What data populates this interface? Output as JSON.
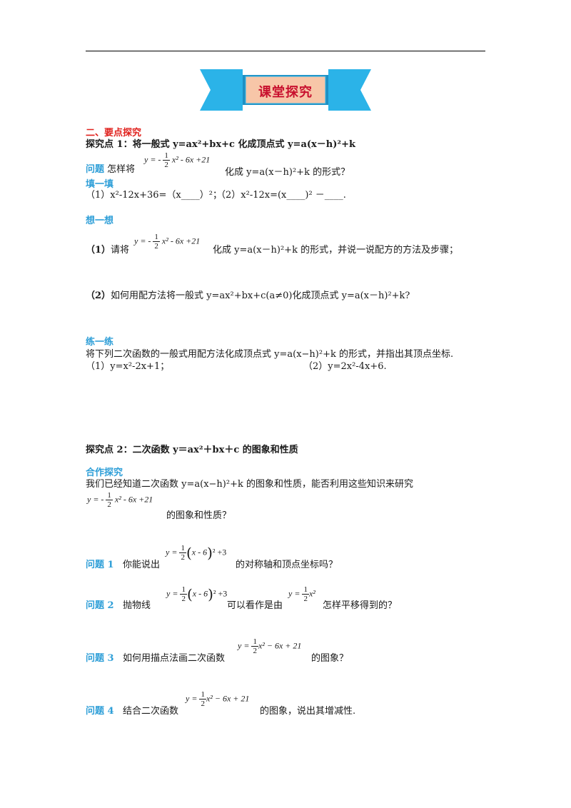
{
  "banner": {
    "title": "课堂探究",
    "colors": {
      "outer": "#2bb3e8",
      "inner": "#f7c6a8",
      "text": "#c8102e"
    }
  },
  "section_heading": "二、要点探究",
  "point1": {
    "heading": "探究点 1：将一般式 y=ax²+bx+c 化成顶点式 y=a(x－h)²+k",
    "question": {
      "label": "问题",
      "before": "怎样将",
      "after": "化成 y=a(x－h)²+k 的形式？"
    },
    "fill_heading": "填一填",
    "fill_items": [
      "（1）x²-12x+36=（x____）²；",
      "（2）x²-12x=(x____)² －____."
    ],
    "think_heading": "想一想",
    "think_1": {
      "label": "（1）",
      "before": "请将",
      "after": "化成 y=a(x－h)²+k 的形式，并说一说配方的方法及步骤；"
    },
    "think_2": {
      "label": "（2）",
      "text": "如何用配方法将一般式 y=ax²+bx+c(a≠0)化成顶点式 y=a(x－h)²+k?"
    },
    "practice_heading": "练一练",
    "practice_text": "将下列二次函数的一般式用配方法化成顶点式 y=a(x−h)²+k 的形式，并指出其顶点坐标.",
    "practice_items": [
      "（1）y=x²-2x+1；",
      "（2）y=2x²-4x+6."
    ]
  },
  "point2": {
    "heading": "探究点 2：二次函数 y＝ax²＋bx＋c 的图象和性质",
    "coop_heading": "合作探究",
    "coop_text": "我们已经知道二次函数 y=a(x−h)²+k 的图象和性质，能否利用这些知识来研究",
    "coop_after": "的图象和性质？",
    "q1": {
      "label": "问题 1",
      "before": "你能说出",
      "after": "的对称轴和顶点坐标吗？"
    },
    "q2": {
      "label": "问题 2",
      "before": "抛物线",
      "middle": "可以看作是由",
      "after": "怎样平移得到的？"
    },
    "q3": {
      "label": "问题 3",
      "before": "如何用描点法画二次函数",
      "after": "的图象？"
    },
    "q4": {
      "label": "问题 4",
      "before": "结合二次函数",
      "after": "的图象，说出其增减性."
    }
  },
  "formulas": {
    "neg_half_lhs": "y = -",
    "neg_half_rest": "x² - 6x +21",
    "half_num": "1",
    "half_den": "2",
    "vertex_lhs": "y =",
    "vertex_paren": "x - 6",
    "vertex_rest": "² +3",
    "simple_rest": "x²",
    "std_rest": "x² − 6x + 21"
  }
}
